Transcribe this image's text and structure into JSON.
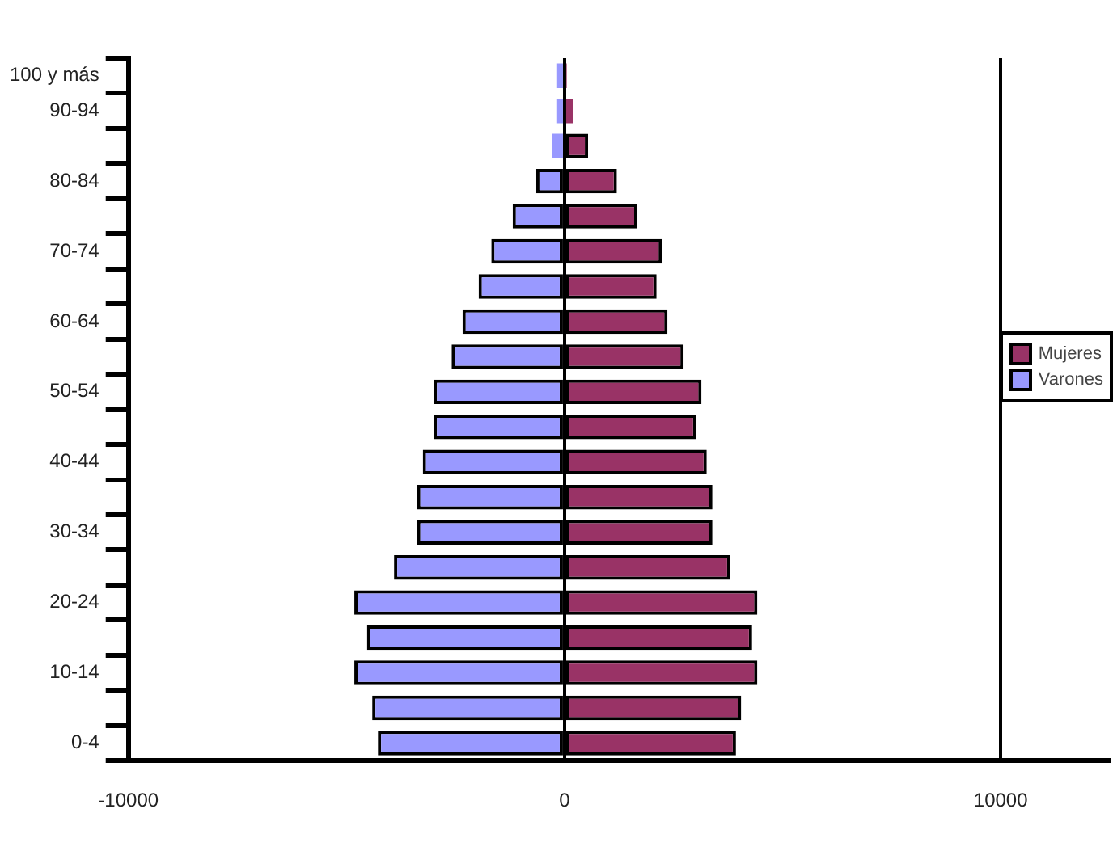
{
  "chart_data": {
    "type": "bar",
    "orientation": "horizontal",
    "stacked": true,
    "categories": [
      "100 y más",
      "90-94",
      null,
      "80-84",
      null,
      "70-74",
      null,
      "60-64",
      null,
      "50-54",
      null,
      "40-44",
      null,
      "30-34",
      null,
      "20-24",
      null,
      "10-14",
      null,
      "0-4"
    ],
    "series": [
      {
        "name": "Mujeres",
        "color": "#993366",
        "values": [
          50,
          190,
          540,
          1200,
          1670,
          2230,
          2110,
          2360,
          2730,
          3140,
          3020,
          3260,
          3390,
          3390,
          3800,
          4420,
          4300,
          4420,
          4050,
          3930
        ]
      },
      {
        "name": "Varones",
        "color": "#9999ff",
        "values": [
          -170,
          -170,
          -280,
          -650,
          -1190,
          -1680,
          -1970,
          -2340,
          -2590,
          -3000,
          -3000,
          -3250,
          -3380,
          -3380,
          -3910,
          -4820,
          -4530,
          -4820,
          -4410,
          -4280
        ]
      }
    ],
    "xlim": [
      -10000,
      12500
    ],
    "xticks": [
      -10000,
      0,
      10000
    ],
    "grid": "x",
    "legend": "right"
  }
}
